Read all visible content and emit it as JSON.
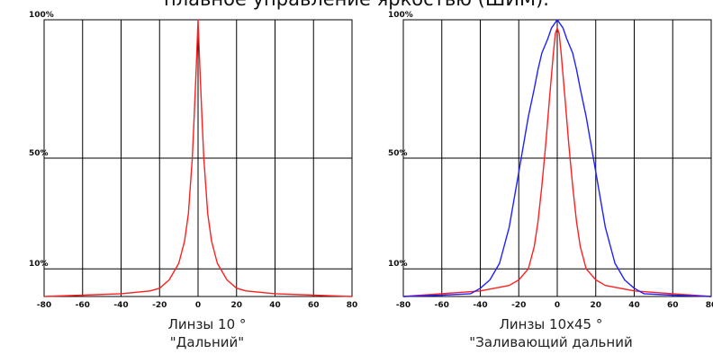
{
  "page": {
    "heading": "плавное управление яркостью (ШИМ)."
  },
  "chart_data": [
    {
      "type": "line",
      "title": "",
      "caption_lines": [
        "Линзы 10 °",
        "\"Дальний\""
      ],
      "xlabel": "",
      "ylabel": "",
      "xlim": [
        -80,
        80
      ],
      "ylim": [
        0,
        100
      ],
      "x_ticks": [
        -80,
        -60,
        -40,
        -20,
        0,
        20,
        40,
        60,
        80
      ],
      "x_tick_labels": [
        "-80",
        "-60",
        "-40",
        "-20",
        "0",
        "20",
        "40",
        "60",
        "80"
      ],
      "y_ticks": [
        10,
        50,
        100
      ],
      "y_tick_labels": [
        "10%",
        "50%",
        "100%"
      ],
      "grid": true,
      "series": [
        {
          "color": "#ff2020",
          "x": [
            -80,
            -60,
            -40,
            -25,
            -20,
            -15,
            -10,
            -7,
            -5,
            -3,
            -2,
            -1,
            0,
            1,
            2,
            3,
            5,
            7,
            10,
            15,
            20,
            25,
            40,
            60,
            80
          ],
          "y": [
            0,
            0.5,
            1,
            2,
            3,
            6,
            12,
            20,
            30,
            50,
            65,
            82,
            100,
            82,
            65,
            50,
            30,
            20,
            12,
            6,
            3,
            2,
            1,
            0.5,
            0
          ]
        }
      ]
    },
    {
      "type": "line",
      "title": "",
      "caption_lines": [
        "Линзы 10x45 °",
        "\"Заливающий дальний"
      ],
      "xlabel": "",
      "ylabel": "",
      "xlim": [
        -80,
        80
      ],
      "ylim": [
        0,
        100
      ],
      "x_ticks": [
        -80,
        -60,
        -40,
        -20,
        0,
        20,
        40,
        60,
        80
      ],
      "x_tick_labels": [
        "-80",
        "-60",
        "-40",
        "-20",
        "0",
        "20",
        "40",
        "60",
        "80"
      ],
      "y_ticks": [
        10,
        50,
        100
      ],
      "y_tick_labels": [
        "10%",
        "50%",
        "100%"
      ],
      "grid": true,
      "series": [
        {
          "color": "#ff2020",
          "x": [
            -80,
            -40,
            -25,
            -20,
            -15,
            -12,
            -10,
            -8,
            -6,
            -4,
            -2,
            -1,
            0,
            1,
            2,
            4,
            6,
            8,
            10,
            12,
            15,
            20,
            25,
            40,
            80
          ],
          "y": [
            0,
            2,
            4,
            6,
            10,
            18,
            27,
            40,
            55,
            72,
            88,
            95,
            97,
            95,
            88,
            72,
            55,
            40,
            27,
            18,
            10,
            6,
            4,
            2,
            0
          ]
        },
        {
          "color": "#2020ff",
          "x": [
            -80,
            -60,
            -45,
            -40,
            -35,
            -30,
            -25,
            -20,
            -15,
            -12,
            -10,
            -8,
            -5,
            -3,
            0,
            3,
            5,
            8,
            10,
            12,
            15,
            20,
            25,
            30,
            35,
            40,
            45,
            60,
            80
          ],
          "y": [
            0,
            0.5,
            1,
            3,
            6,
            12,
            25,
            45,
            65,
            75,
            82,
            88,
            93,
            97,
            100,
            97,
            93,
            88,
            82,
            75,
            65,
            45,
            25,
            12,
            6,
            3,
            1,
            0.5,
            0
          ]
        }
      ]
    }
  ]
}
